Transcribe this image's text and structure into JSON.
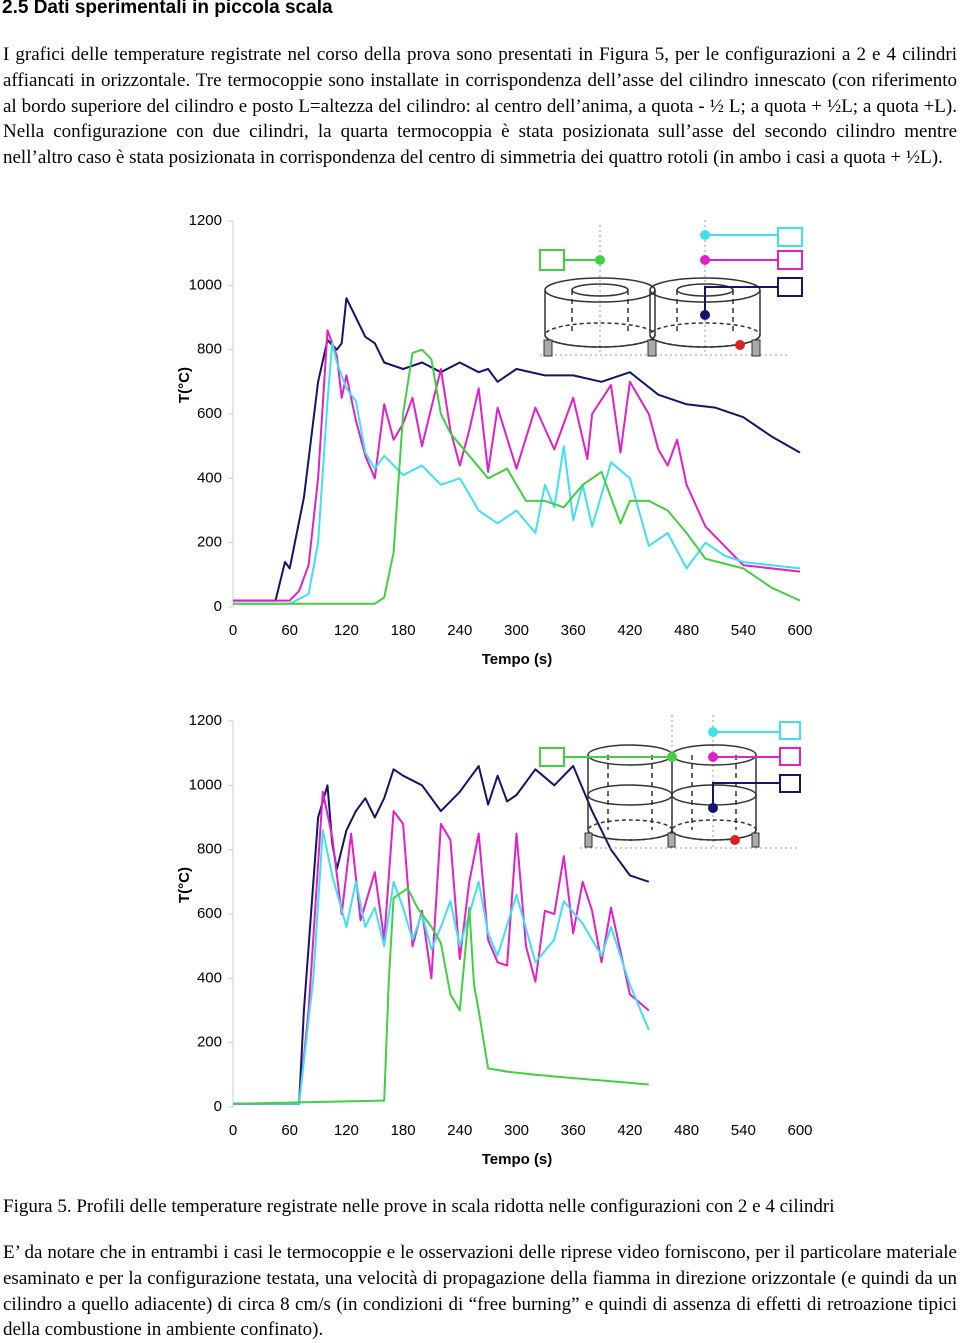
{
  "text": {
    "heading": "2.5 Dati sperimentali in piccola scala",
    "paragraph_1": "I grafici delle temperature registrate  nel corso della prova sono presentati in Figura 5, per le configurazioni a 2 e 4 cilindri affiancati in orizzontale. Tre termocoppie sono installate in corrispondenza dell’asse del cilindro innescato (con riferimento al bordo superiore del cilindro e posto L=altezza del cilindro: al centro dell’anima, a quota - ½ L; a quota + ½L; a quota +L). Nella configurazione con due cilindri, la quarta termocoppia è stata posizionata sull’asse del secondo cilindro  mentre nell’altro caso è stata posizionata in corrispondenza del centro di simmetria dei quattro rotoli (in ambo i casi a quota + ½L).",
    "caption": "Figura 5. Profili delle temperature registrate nelle prove in scala ridotta nelle configurazioni con 2 e 4 cilindri",
    "paragraph_2": "E’ da notare che in entrambi i casi le termocoppie e le osservazioni delle riprese video forniscono, per il particolare materiale esaminato e per la configurazione testata, una velocità di propagazione della fiamma in direzione  orizzontale (e quindi da un cilindro a quello adiacente) di circa 8 cm/s (in condizioni di “free burning” e quindi di assenza di effetti di retroazione tipici della combustione in ambiente confinato)."
  },
  "chart_data": [
    {
      "type": "line",
      "ylabel": "T(°C)",
      "xlabel": "Tempo (s)",
      "xlim": [
        0,
        600
      ],
      "ylim": [
        0,
        1200
      ],
      "xticks": [
        0,
        60,
        120,
        180,
        240,
        300,
        360,
        420,
        480,
        540,
        600
      ],
      "yticks": [
        0,
        200,
        400,
        600,
        800,
        1000,
        1200
      ],
      "series": [
        {
          "color": "#14146e",
          "x": [
            0,
            45,
            55,
            60,
            75,
            90,
            100,
            110,
            115,
            120,
            130,
            140,
            150,
            160,
            180,
            200,
            220,
            240,
            260,
            270,
            280,
            300,
            330,
            360,
            390,
            420,
            450,
            480,
            510,
            540,
            570,
            600
          ],
          "values": [
            20,
            20,
            140,
            120,
            340,
            700,
            830,
            800,
            820,
            960,
            900,
            840,
            820,
            760,
            740,
            760,
            730,
            760,
            730,
            740,
            700,
            740,
            720,
            720,
            700,
            730,
            660,
            630,
            620,
            590,
            530,
            480
          ]
        },
        {
          "color": "#e020c8",
          "x": [
            0,
            60,
            70,
            80,
            90,
            100,
            110,
            115,
            120,
            130,
            140,
            150,
            160,
            170,
            180,
            190,
            200,
            210,
            220,
            230,
            240,
            250,
            260,
            270,
            280,
            300,
            320,
            340,
            360,
            375,
            380,
            400,
            410,
            420,
            440,
            450,
            460,
            470,
            480,
            500,
            540,
            600
          ],
          "values": [
            20,
            20,
            50,
            130,
            400,
            860,
            780,
            650,
            720,
            580,
            470,
            400,
            630,
            520,
            570,
            650,
            500,
            620,
            740,
            550,
            440,
            550,
            680,
            420,
            620,
            430,
            620,
            490,
            650,
            460,
            600,
            690,
            480,
            700,
            600,
            490,
            440,
            520,
            380,
            250,
            130,
            110
          ]
        },
        {
          "color": "#40e0f0",
          "x": [
            0,
            60,
            80,
            90,
            100,
            105,
            110,
            120,
            130,
            140,
            150,
            160,
            180,
            200,
            220,
            240,
            260,
            280,
            300,
            320,
            330,
            340,
            350,
            360,
            370,
            380,
            400,
            420,
            440,
            460,
            480,
            500,
            520,
            540,
            600
          ],
          "values": [
            10,
            10,
            40,
            200,
            640,
            820,
            760,
            680,
            640,
            480,
            430,
            470,
            410,
            440,
            380,
            400,
            300,
            260,
            300,
            230,
            380,
            310,
            500,
            270,
            380,
            250,
            450,
            400,
            190,
            230,
            120,
            200,
            160,
            140,
            120
          ]
        },
        {
          "color": "#40d040",
          "x": [
            0,
            150,
            160,
            170,
            180,
            190,
            200,
            210,
            220,
            230,
            250,
            270,
            290,
            310,
            330,
            350,
            370,
            390,
            410,
            420,
            440,
            460,
            480,
            500,
            540,
            570,
            600
          ],
          "values": [
            10,
            10,
            30,
            170,
            600,
            790,
            800,
            770,
            600,
            540,
            470,
            400,
            430,
            330,
            330,
            310,
            380,
            420,
            260,
            330,
            330,
            300,
            230,
            150,
            120,
            60,
            20
          ]
        }
      ]
    },
    {
      "type": "line",
      "ylabel": "T(°C)",
      "xlabel": "Tempo (s)",
      "xlim": [
        0,
        600
      ],
      "ylim": [
        0,
        1200
      ],
      "xticks": [
        0,
        60,
        120,
        180,
        240,
        300,
        360,
        420,
        480,
        540,
        600
      ],
      "yticks": [
        0,
        200,
        400,
        600,
        800,
        1000,
        1200
      ],
      "series": [
        {
          "color": "#14146e",
          "x": [
            0,
            70,
            75,
            90,
            100,
            105,
            110,
            120,
            130,
            140,
            150,
            160,
            170,
            180,
            200,
            220,
            240,
            260,
            270,
            280,
            290,
            300,
            320,
            340,
            360,
            380,
            400,
            420,
            440
          ],
          "values": [
            10,
            10,
            300,
            900,
            1000,
            820,
            740,
            860,
            920,
            960,
            900,
            960,
            1050,
            1030,
            1000,
            920,
            980,
            1060,
            940,
            1030,
            950,
            970,
            1050,
            1000,
            1060,
            920,
            800,
            720,
            700
          ]
        },
        {
          "color": "#e020c8",
          "x": [
            0,
            70,
            80,
            95,
            105,
            115,
            125,
            135,
            150,
            160,
            170,
            180,
            190,
            200,
            210,
            220,
            230,
            240,
            250,
            260,
            270,
            280,
            290,
            300,
            310,
            320,
            330,
            340,
            350,
            360,
            370,
            380,
            390,
            400,
            420,
            440
          ],
          "values": [
            10,
            10,
            300,
            980,
            840,
            600,
            850,
            580,
            730,
            520,
            920,
            880,
            500,
            610,
            400,
            880,
            830,
            460,
            700,
            850,
            520,
            450,
            440,
            850,
            500,
            390,
            610,
            600,
            780,
            540,
            700,
            610,
            450,
            620,
            350,
            300
          ]
        },
        {
          "color": "#40e0f0",
          "x": [
            0,
            70,
            85,
            95,
            105,
            120,
            130,
            140,
            150,
            160,
            170,
            180,
            190,
            200,
            210,
            220,
            230,
            240,
            260,
            270,
            280,
            300,
            320,
            340,
            350,
            370,
            390,
            400,
            420,
            440
          ],
          "values": [
            10,
            10,
            400,
            860,
            720,
            560,
            700,
            560,
            620,
            500,
            700,
            620,
            520,
            600,
            490,
            560,
            640,
            500,
            700,
            540,
            470,
            660,
            450,
            520,
            640,
            570,
            470,
            560,
            380,
            240
          ]
        },
        {
          "color": "#40d040",
          "x": [
            0,
            160,
            165,
            170,
            185,
            195,
            210,
            220,
            230,
            240,
            250,
            255,
            260,
            270,
            290,
            320,
            360,
            400,
            440
          ],
          "values": [
            10,
            20,
            400,
            650,
            680,
            620,
            560,
            510,
            350,
            300,
            620,
            380,
            300,
            120,
            110,
            100,
            90,
            80,
            70
          ]
        }
      ]
    }
  ]
}
